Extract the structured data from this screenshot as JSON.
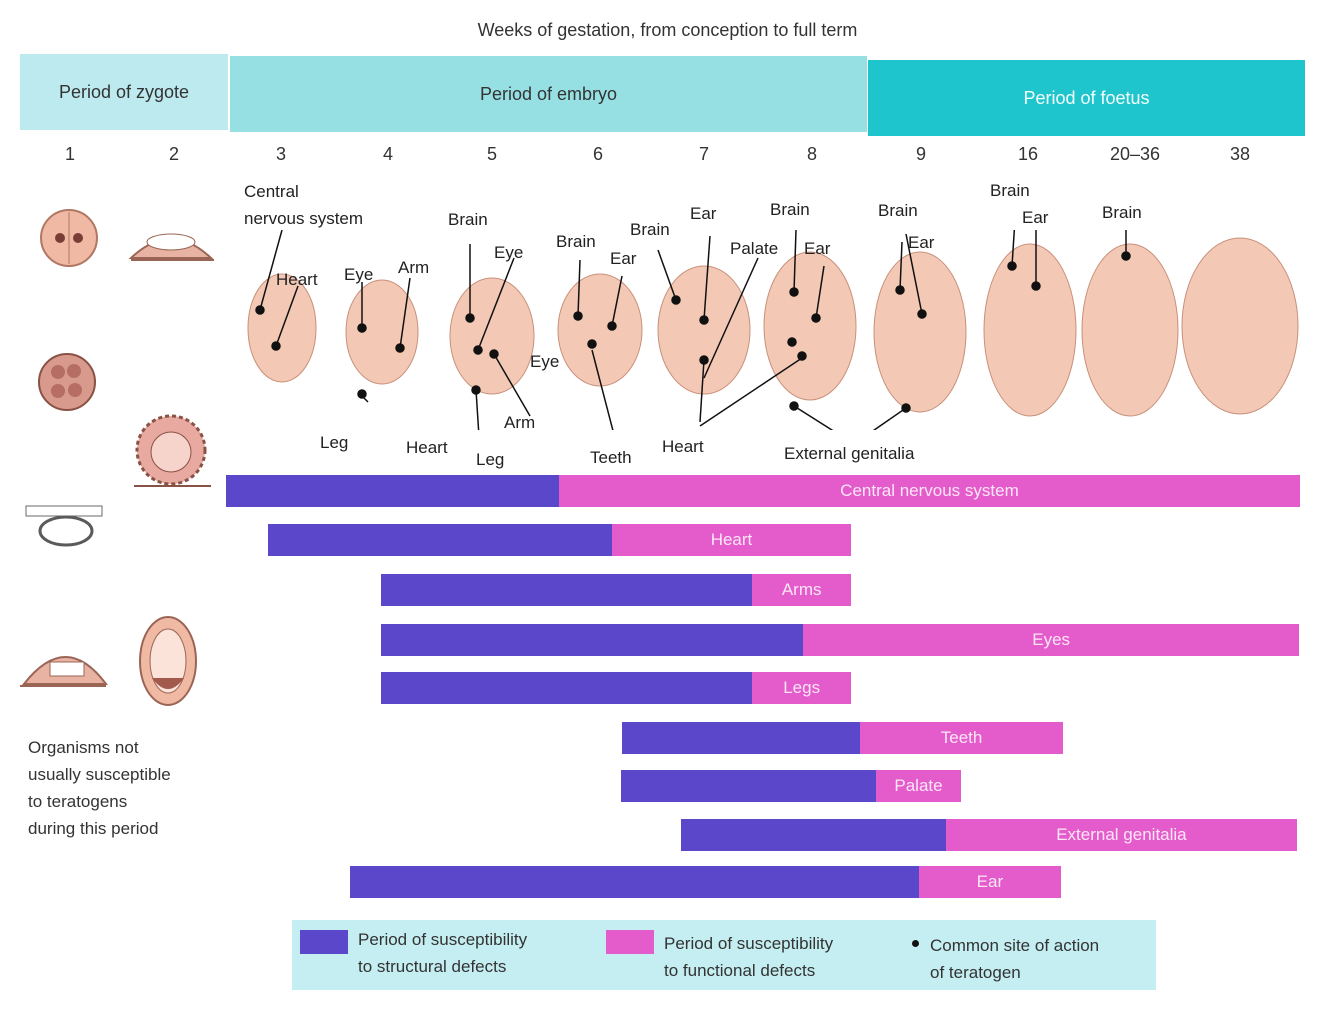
{
  "title": "Weeks of gestation, from conception to full term",
  "periods": {
    "zygote": "Period of zygote",
    "embryo": "Period of embryo",
    "foetus": "Period of foetus"
  },
  "weeks": [
    "1",
    "2",
    "3",
    "4",
    "5",
    "6",
    "7",
    "8",
    "9",
    "16",
    "20–36",
    "38"
  ],
  "organ_labels": {
    "central_nervous_system": "Central\nnervous system",
    "heart": "Heart",
    "eye": "Eye",
    "arm": "Arm",
    "leg": "Leg",
    "brain": "Brain",
    "ear": "Ear",
    "palate": "Palate",
    "teeth": "Teeth",
    "external_genitalia": "External genitalia"
  },
  "bars": [
    {
      "label": "Central nervous system",
      "structural_share": 0.31
    },
    {
      "label": "Heart",
      "structural_share": 0.59
    },
    {
      "label": "Arms",
      "structural_share": 0.79
    },
    {
      "label": "Eyes",
      "structural_share": 0.46
    },
    {
      "label": "Legs",
      "structural_share": 0.79
    },
    {
      "label": "Teeth",
      "structural_share": 0.54
    },
    {
      "label": "Palate",
      "structural_share": 0.75
    },
    {
      "label": "External genitalia",
      "structural_share": 0.43
    },
    {
      "label": "Ear",
      "structural_share": 0.8
    }
  ],
  "note": "Organisms not\nusually susceptible\nto teratogens\nduring this period",
  "legend": {
    "structural": "Period of susceptibility\nto structural defects",
    "functional": "Period of susceptibility\nto functional defects",
    "site": "Common site of action\nof teratogen"
  },
  "colors": {
    "structural": "#5b47c9",
    "functional": "#e45ccb",
    "zygote_period": "#bdeaef",
    "embryo_period": "#96e0e4",
    "foetus_period": "#1fc5cc",
    "embryo_skin": "#f3c9b6"
  }
}
